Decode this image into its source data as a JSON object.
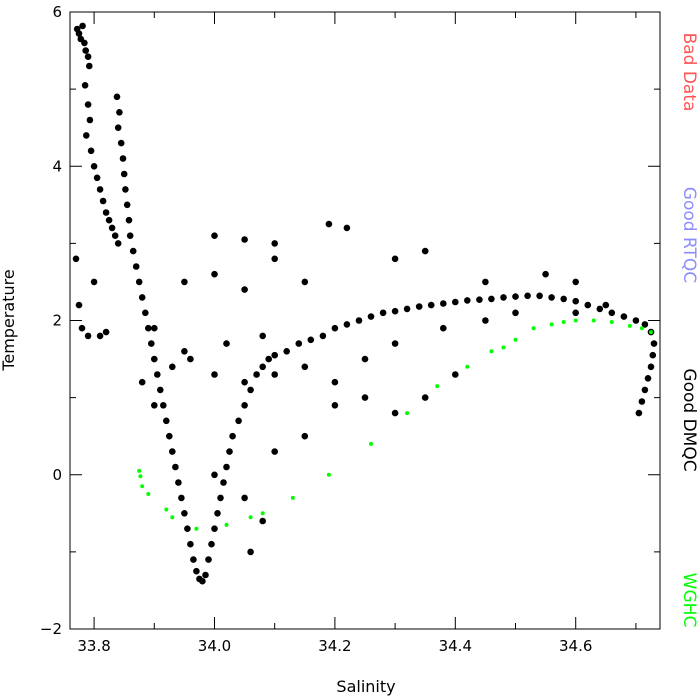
{
  "chart_data": {
    "type": "scatter",
    "title": "",
    "xlabel": "Salinity",
    "ylabel": "Temperature",
    "xlim": [
      33.76,
      34.74
    ],
    "ylim": [
      -2,
      6
    ],
    "x_ticks": [
      33.8,
      34.0,
      34.2,
      34.4,
      34.6
    ],
    "x_tick_labels": [
      "33.8",
      "34.0",
      "34.2",
      "34.4",
      "34.6"
    ],
    "y_ticks": [
      -2,
      0,
      2,
      4,
      6
    ],
    "y_tick_labels": [
      "−2",
      "0",
      "2",
      "4",
      "6"
    ],
    "grid": false,
    "legend_position": "right",
    "series": [
      {
        "name": "Bad Data",
        "color": "#ff5555",
        "points": []
      },
      {
        "name": "Good RTQC",
        "color": "#8c8cff",
        "points": []
      },
      {
        "name": "Good DMQC",
        "color": "#000000",
        "points": [
          [
            33.772,
            5.78
          ],
          [
            33.775,
            5.72
          ],
          [
            33.778,
            5.65
          ],
          [
            33.781,
            5.82
          ],
          [
            33.784,
            5.6
          ],
          [
            33.786,
            5.5
          ],
          [
            33.79,
            5.42
          ],
          [
            33.792,
            5.3
          ],
          [
            33.785,
            5.05
          ],
          [
            33.79,
            4.8
          ],
          [
            33.793,
            4.6
          ],
          [
            33.787,
            4.4
          ],
          [
            33.795,
            4.2
          ],
          [
            33.8,
            4.0
          ],
          [
            33.805,
            3.85
          ],
          [
            33.81,
            3.7
          ],
          [
            33.815,
            3.55
          ],
          [
            33.82,
            3.4
          ],
          [
            33.825,
            3.3
          ],
          [
            33.83,
            3.2
          ],
          [
            33.835,
            3.1
          ],
          [
            33.84,
            3.0
          ],
          [
            33.845,
            4.3
          ],
          [
            33.84,
            4.5
          ],
          [
            33.838,
            4.9
          ],
          [
            33.842,
            4.7
          ],
          [
            33.848,
            4.1
          ],
          [
            33.85,
            3.9
          ],
          [
            33.852,
            3.7
          ],
          [
            33.855,
            3.5
          ],
          [
            33.858,
            3.3
          ],
          [
            33.86,
            3.1
          ],
          [
            33.865,
            2.9
          ],
          [
            33.87,
            2.7
          ],
          [
            33.875,
            2.5
          ],
          [
            33.88,
            2.3
          ],
          [
            33.885,
            2.1
          ],
          [
            33.89,
            1.9
          ],
          [
            33.895,
            1.7
          ],
          [
            33.9,
            1.5
          ],
          [
            33.905,
            1.3
          ],
          [
            33.91,
            1.1
          ],
          [
            33.915,
            0.9
          ],
          [
            33.92,
            0.7
          ],
          [
            33.925,
            0.5
          ],
          [
            33.93,
            0.3
          ],
          [
            33.935,
            0.1
          ],
          [
            33.94,
            -0.1
          ],
          [
            33.945,
            -0.3
          ],
          [
            33.95,
            -0.5
          ],
          [
            33.955,
            -0.7
          ],
          [
            33.96,
            -0.9
          ],
          [
            33.965,
            -1.1
          ],
          [
            33.97,
            -1.25
          ],
          [
            33.975,
            -1.35
          ],
          [
            33.98,
            -1.38
          ],
          [
            33.985,
            -1.3
          ],
          [
            33.99,
            -1.1
          ],
          [
            33.995,
            -0.9
          ],
          [
            34.0,
            -0.7
          ],
          [
            34.005,
            -0.5
          ],
          [
            34.01,
            -0.3
          ],
          [
            34.015,
            -0.1
          ],
          [
            34.02,
            0.1
          ],
          [
            34.025,
            0.3
          ],
          [
            34.03,
            0.5
          ],
          [
            34.04,
            0.7
          ],
          [
            34.05,
            0.9
          ],
          [
            34.06,
            1.1
          ],
          [
            34.07,
            1.3
          ],
          [
            34.08,
            1.4
          ],
          [
            34.09,
            1.5
          ],
          [
            34.1,
            1.55
          ],
          [
            34.12,
            1.6
          ],
          [
            34.14,
            1.7
          ],
          [
            34.16,
            1.75
          ],
          [
            34.18,
            1.8
          ],
          [
            34.2,
            1.9
          ],
          [
            34.22,
            1.95
          ],
          [
            34.24,
            2.0
          ],
          [
            34.26,
            2.05
          ],
          [
            34.28,
            2.1
          ],
          [
            34.3,
            2.12
          ],
          [
            34.32,
            2.15
          ],
          [
            34.34,
            2.18
          ],
          [
            34.36,
            2.2
          ],
          [
            34.38,
            2.22
          ],
          [
            34.4,
            2.24
          ],
          [
            34.42,
            2.26
          ],
          [
            34.44,
            2.27
          ],
          [
            34.46,
            2.28
          ],
          [
            34.48,
            2.3
          ],
          [
            34.5,
            2.31
          ],
          [
            34.52,
            2.32
          ],
          [
            34.54,
            2.32
          ],
          [
            34.56,
            2.3
          ],
          [
            34.58,
            2.28
          ],
          [
            34.6,
            2.25
          ],
          [
            34.62,
            2.2
          ],
          [
            34.64,
            2.15
          ],
          [
            34.66,
            2.1
          ],
          [
            34.68,
            2.05
          ],
          [
            34.7,
            2.0
          ],
          [
            34.715,
            1.95
          ],
          [
            34.725,
            1.85
          ],
          [
            34.73,
            1.7
          ],
          [
            34.728,
            1.55
          ],
          [
            34.725,
            1.4
          ],
          [
            34.72,
            1.25
          ],
          [
            34.715,
            1.1
          ],
          [
            34.71,
            0.95
          ],
          [
            34.705,
            0.8
          ],
          [
            33.77,
            2.8
          ],
          [
            33.775,
            2.2
          ],
          [
            33.78,
            1.9
          ],
          [
            33.79,
            1.8
          ],
          [
            33.8,
            2.5
          ],
          [
            33.81,
            1.8
          ],
          [
            33.82,
            1.85
          ],
          [
            33.9,
            1.9
          ],
          [
            33.95,
            1.6
          ],
          [
            34.0,
            1.3
          ],
          [
            34.05,
            1.2
          ],
          [
            34.1,
            1.3
          ],
          [
            34.15,
            1.4
          ],
          [
            34.0,
            3.1
          ],
          [
            34.05,
            3.05
          ],
          [
            34.1,
            3.0
          ],
          [
            34.19,
            3.25
          ],
          [
            34.22,
            3.2
          ],
          [
            34.3,
            2.8
          ],
          [
            34.35,
            2.9
          ],
          [
            34.45,
            2.5
          ],
          [
            34.55,
            2.6
          ],
          [
            34.6,
            2.5
          ],
          [
            33.95,
            2.5
          ],
          [
            34.0,
            2.6
          ],
          [
            34.05,
            2.4
          ],
          [
            34.1,
            2.8
          ],
          [
            34.15,
            2.5
          ],
          [
            34.2,
            1.2
          ],
          [
            34.25,
            1.0
          ],
          [
            34.3,
            0.8
          ],
          [
            34.35,
            1.0
          ],
          [
            34.4,
            1.3
          ],
          [
            34.0,
            0.0
          ],
          [
            34.05,
            -0.3
          ],
          [
            34.08,
            -0.6
          ],
          [
            34.06,
            -1.0
          ],
          [
            34.1,
            0.3
          ],
          [
            34.15,
            0.5
          ],
          [
            34.2,
            0.9
          ],
          [
            34.25,
            1.5
          ],
          [
            34.3,
            1.7
          ],
          [
            34.38,
            1.9
          ],
          [
            34.45,
            2.0
          ],
          [
            34.5,
            2.1
          ],
          [
            34.6,
            2.1
          ],
          [
            34.65,
            2.2
          ],
          [
            33.88,
            1.2
          ],
          [
            33.9,
            0.9
          ],
          [
            33.93,
            1.4
          ],
          [
            33.96,
            1.5
          ],
          [
            34.02,
            1.7
          ],
          [
            34.08,
            1.8
          ]
        ]
      },
      {
        "name": "WGHC",
        "color": "#00ff00",
        "points": [
          [
            33.875,
            0.05
          ],
          [
            33.877,
            -0.02
          ],
          [
            33.88,
            -0.15
          ],
          [
            33.89,
            -0.25
          ],
          [
            33.92,
            -0.45
          ],
          [
            33.93,
            -0.55
          ],
          [
            33.97,
            -0.7
          ],
          [
            34.02,
            -0.65
          ],
          [
            34.06,
            -0.55
          ],
          [
            34.08,
            -0.5
          ],
          [
            34.13,
            -0.3
          ],
          [
            34.19,
            0.0
          ],
          [
            34.26,
            0.4
          ],
          [
            34.32,
            0.8
          ],
          [
            34.37,
            1.15
          ],
          [
            34.42,
            1.4
          ],
          [
            34.46,
            1.6
          ],
          [
            34.48,
            1.65
          ],
          [
            34.5,
            1.75
          ],
          [
            34.53,
            1.9
          ],
          [
            34.56,
            1.95
          ],
          [
            34.58,
            1.98
          ],
          [
            34.6,
            2.0
          ],
          [
            34.63,
            2.0
          ],
          [
            34.66,
            1.98
          ],
          [
            34.69,
            1.93
          ],
          [
            34.71,
            1.9
          ],
          [
            34.725,
            1.85
          ]
        ]
      }
    ]
  }
}
